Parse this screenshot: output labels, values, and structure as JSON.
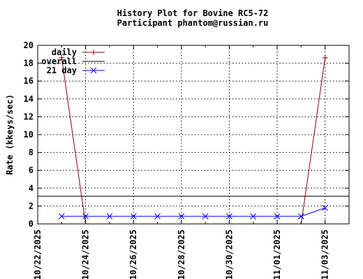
{
  "chart_data": {
    "type": "line",
    "title": "History Plot for Bovine RC5-72",
    "subtitle": "Participant phantom@russian.ru",
    "xlabel": "",
    "ylabel": "Rate (kkeys/sec)",
    "xlim": [
      "2025-10-22",
      "2025-11-04"
    ],
    "ylim": [
      0,
      20
    ],
    "x_ticks": [
      "10/22/2025",
      "10/24/2025",
      "10/26/2025",
      "10/28/2025",
      "10/30/2025",
      "11/01/2025",
      "11/03/2025"
    ],
    "y_ticks": [
      "0",
      "2",
      "4",
      "6",
      "8",
      "10",
      "12",
      "14",
      "16",
      "18",
      "20"
    ],
    "grid": true,
    "legend_position": "top-left",
    "series": [
      {
        "name": "daily",
        "color": "#8b0000",
        "marker": "plus",
        "points": [
          {
            "x": "2025-10-23",
            "y": 18.6
          },
          {
            "x": "2025-10-24",
            "y": 0
          },
          {
            "x": "2025-11-02",
            "y": 0
          },
          {
            "x": "2025-11-03",
            "y": 18.6
          }
        ]
      },
      {
        "name": "overall",
        "color": "#000000",
        "marker": "none",
        "points": [
          {
            "x": "2025-10-22",
            "y": 3.1
          },
          {
            "x": "2025-11-04",
            "y": 3.1
          }
        ]
      },
      {
        "name": "21 day",
        "color": "#0000ff",
        "marker": "x",
        "points": [
          {
            "x": "2025-10-23",
            "y": 0.85
          },
          {
            "x": "2025-10-24",
            "y": 0.85
          },
          {
            "x": "2025-10-25",
            "y": 0.85
          },
          {
            "x": "2025-10-26",
            "y": 0.85
          },
          {
            "x": "2025-10-27",
            "y": 0.85
          },
          {
            "x": "2025-10-28",
            "y": 0.85
          },
          {
            "x": "2025-10-29",
            "y": 0.85
          },
          {
            "x": "2025-10-30",
            "y": 0.85
          },
          {
            "x": "2025-10-31",
            "y": 0.85
          },
          {
            "x": "2025-11-01",
            "y": 0.85
          },
          {
            "x": "2025-11-02",
            "y": 0.85
          },
          {
            "x": "2025-11-03",
            "y": 1.8
          }
        ]
      }
    ]
  }
}
